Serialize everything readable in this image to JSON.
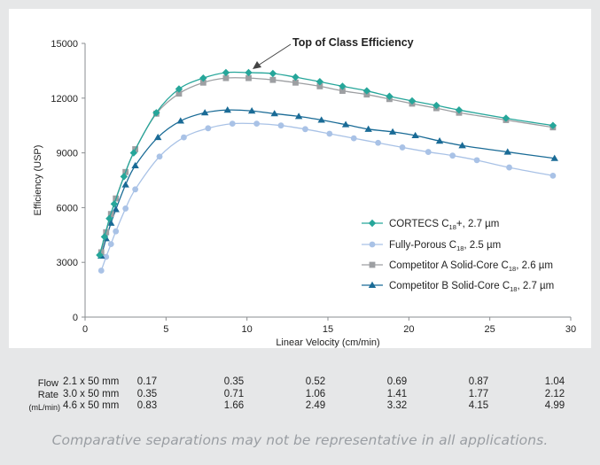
{
  "chart_data": {
    "type": "line",
    "title": "",
    "xlabel": "Linear Velocity (cm/min)",
    "ylabel": "Efficiency (USP)",
    "xlim": [
      0,
      30
    ],
    "ylim": [
      0,
      15000
    ],
    "xticks": [
      "0",
      "5",
      "10",
      "15",
      "20",
      "25",
      "30"
    ],
    "yticks": [
      "0",
      "3000",
      "6000",
      "9000",
      "12000",
      "15000"
    ],
    "grid": false,
    "legend_position": "lower-right",
    "annotation": "Top of Class Efficiency",
    "series": [
      {
        "name": "CORTECS C18+, 2.7 µm",
        "legend": {
          "pre": "CORTECS C",
          "sub": "18",
          "post": "+, 2.7 µm"
        },
        "color": "#26a69a",
        "marker": "diamond",
        "x": [
          0.9,
          1.2,
          1.5,
          1.8,
          2.4,
          3.0,
          4.4,
          5.8,
          7.3,
          8.7,
          10.1,
          11.6,
          13.0,
          14.5,
          15.9,
          17.4,
          18.8,
          20.2,
          21.7,
          23.1,
          26.0,
          28.9
        ],
        "y": [
          3400,
          4400,
          5400,
          6200,
          7700,
          9000,
          11200,
          12500,
          13100,
          13400,
          13400,
          13350,
          13150,
          12900,
          12650,
          12400,
          12100,
          11850,
          11600,
          11350,
          10900,
          10500
        ]
      },
      {
        "name": "Fully-Porous C18, 2.5 µm",
        "legend": {
          "pre": "Fully-Porous C",
          "sub": "18",
          "post": ", 2.5 µm"
        },
        "color": "#a9c2e6",
        "marker": "circle",
        "x": [
          1.0,
          1.3,
          1.6,
          1.9,
          2.5,
          3.1,
          4.6,
          6.1,
          7.6,
          9.1,
          10.6,
          12.1,
          13.6,
          15.1,
          16.6,
          18.1,
          19.6,
          21.2,
          22.7,
          24.2,
          26.2,
          28.9
        ],
        "y": [
          2550,
          3300,
          4000,
          4700,
          5950,
          7000,
          8800,
          9850,
          10350,
          10600,
          10600,
          10500,
          10300,
          10050,
          9800,
          9550,
          9300,
          9050,
          8850,
          8600,
          8200,
          7750
        ]
      },
      {
        "name": "Competitor A Solid-Core C18, 2.6 µm",
        "legend": {
          "pre": "Competitor A Solid-Core C",
          "sub": "18",
          "post": ", 2.6 µm"
        },
        "color": "#9d9fa2",
        "marker": "square",
        "x": [
          1.0,
          1.3,
          1.6,
          1.9,
          2.5,
          3.1,
          4.4,
          5.8,
          7.3,
          8.7,
          10.1,
          11.6,
          13.0,
          14.5,
          15.9,
          17.4,
          18.8,
          20.2,
          21.7,
          23.1,
          26.0,
          28.9
        ],
        "y": [
          3550,
          4650,
          5650,
          6500,
          7950,
          9200,
          11150,
          12250,
          12850,
          13100,
          13100,
          13000,
          12850,
          12650,
          12400,
          12200,
          11950,
          11700,
          11450,
          11200,
          10800,
          10400
        ]
      },
      {
        "name": "Competitor B Solid-Core C18, 2.7 µm",
        "legend": {
          "pre": "Competitor B Solid-Core C",
          "sub": "18",
          "post": ", 2.7 µm"
        },
        "color": "#1a6b96",
        "marker": "triangle",
        "x": [
          1.0,
          1.3,
          1.6,
          1.9,
          2.5,
          3.1,
          4.5,
          5.9,
          7.4,
          8.8,
          10.3,
          11.7,
          13.2,
          14.6,
          16.1,
          17.5,
          19.0,
          20.4,
          21.9,
          23.3,
          26.1,
          29.0
        ],
        "y": [
          3350,
          4300,
          5150,
          5900,
          7250,
          8300,
          9850,
          10750,
          11200,
          11350,
          11300,
          11150,
          11000,
          10800,
          10550,
          10300,
          10150,
          9950,
          9650,
          9400,
          9050,
          8700
        ]
      }
    ]
  },
  "flow_table": {
    "header": [
      "Flow",
      "Rate",
      "(mL/min)"
    ],
    "rows": [
      {
        "column": "2.1 x 50 mm",
        "values": [
          "0.17",
          "0.35",
          "0.52",
          "0.69",
          "0.87",
          "1.04"
        ]
      },
      {
        "column": "3.0 x 50 mm",
        "values": [
          "0.35",
          "0.71",
          "1.06",
          "1.41",
          "1.77",
          "2.12"
        ]
      },
      {
        "column": "4.6 x 50 mm",
        "values": [
          "0.83",
          "1.66",
          "2.49",
          "3.32",
          "4.15",
          "4.99"
        ]
      }
    ]
  },
  "footnote": "Comparative separations may not be representative in all applications.",
  "colors": {
    "background": "#e6e7e8",
    "panel": "#ffffff",
    "axis": "#8a8d90"
  }
}
